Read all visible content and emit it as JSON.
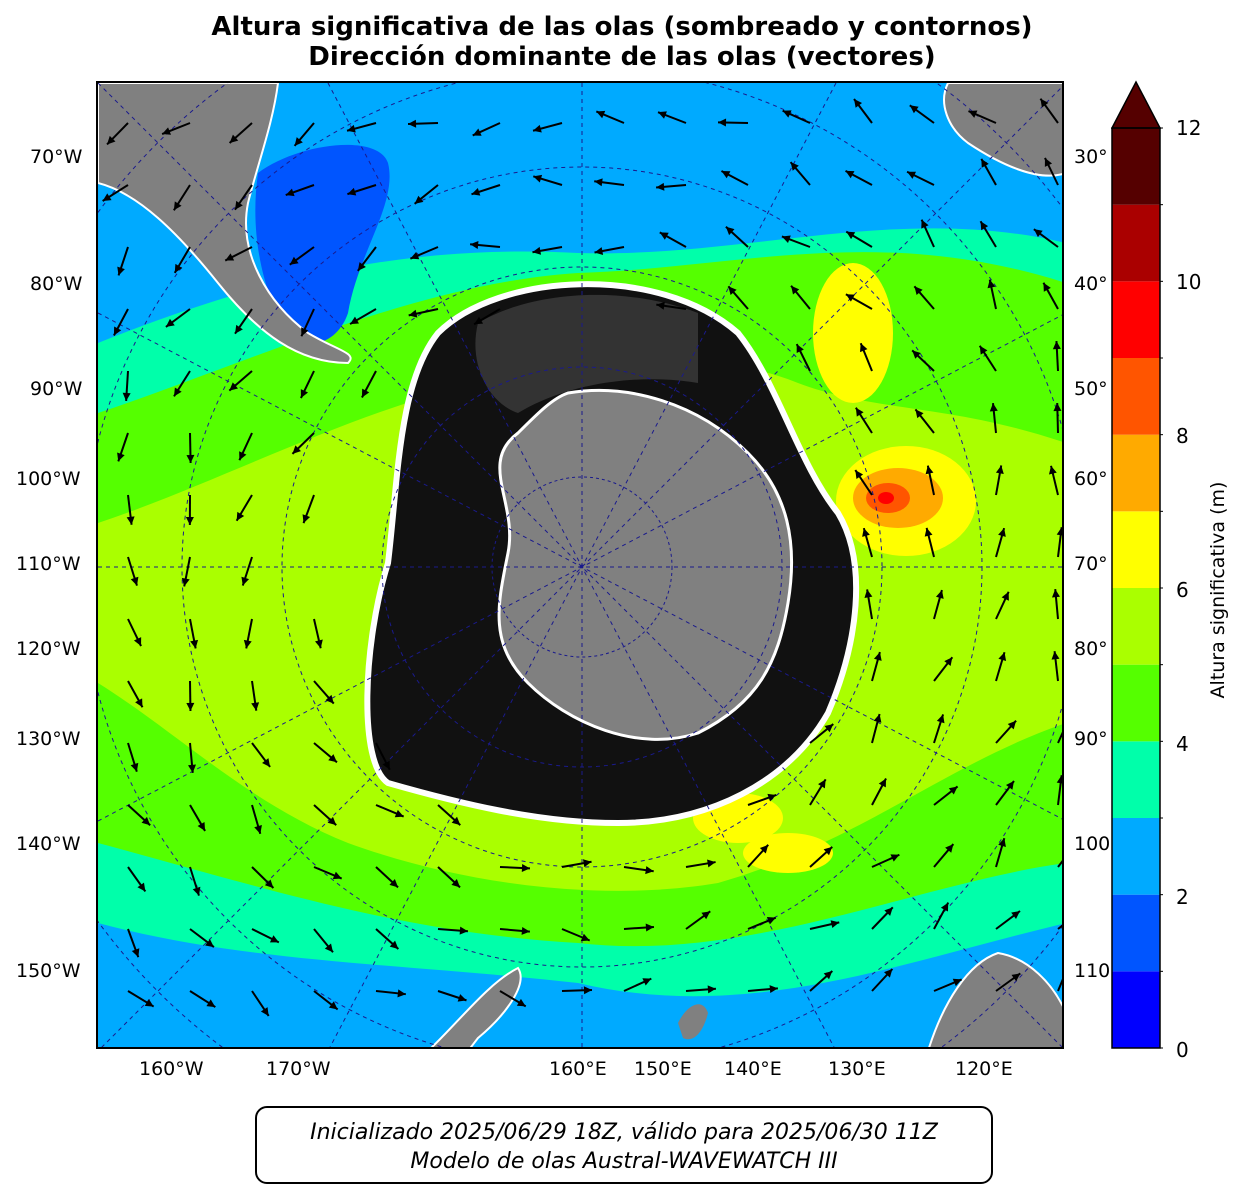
{
  "title": {
    "line1": "Altura significativa de las olas (sombreado y contornos)",
    "line2": "Dirección dominante de las olas (vectores)"
  },
  "map": {
    "projection": "south polar stereographic",
    "lat_labels_left": [
      "70°W",
      "80°W",
      "90°W",
      "100°W",
      "110°W",
      "120°W",
      "130°W",
      "140°W",
      "150°W"
    ],
    "lat_labels_right": [
      "30°",
      "40°",
      "50°",
      "60°",
      "70°",
      "80°",
      "90°",
      "100",
      "110"
    ],
    "lon_labels_bottom": [
      "160°W",
      "170°W",
      "160°E",
      "150°E",
      "140°E",
      "130°E",
      "120°E"
    ],
    "colors": {
      "land": "#808080",
      "sea_ice_dark": "#111111",
      "gridline": "#1a1a8c"
    }
  },
  "colorbar": {
    "label": "Altura significativa (m)",
    "ticks": [
      "0",
      "2",
      "4",
      "6",
      "8",
      "10",
      "12"
    ],
    "range": [
      0,
      12
    ],
    "extend": "max",
    "colors": [
      "#0000ff",
      "#0055ff",
      "#00aaff",
      "#00ffaa",
      "#55ff00",
      "#aaff00",
      "#ffff00",
      "#ffaa00",
      "#ff5500",
      "#ff0000",
      "#aa0000",
      "#550000"
    ]
  },
  "footer": {
    "line1": "Inicializado 2025/06/29 18Z, válido para 2025/06/30 11Z",
    "line2": "Modelo de olas Austral-WAVEWATCH III"
  }
}
